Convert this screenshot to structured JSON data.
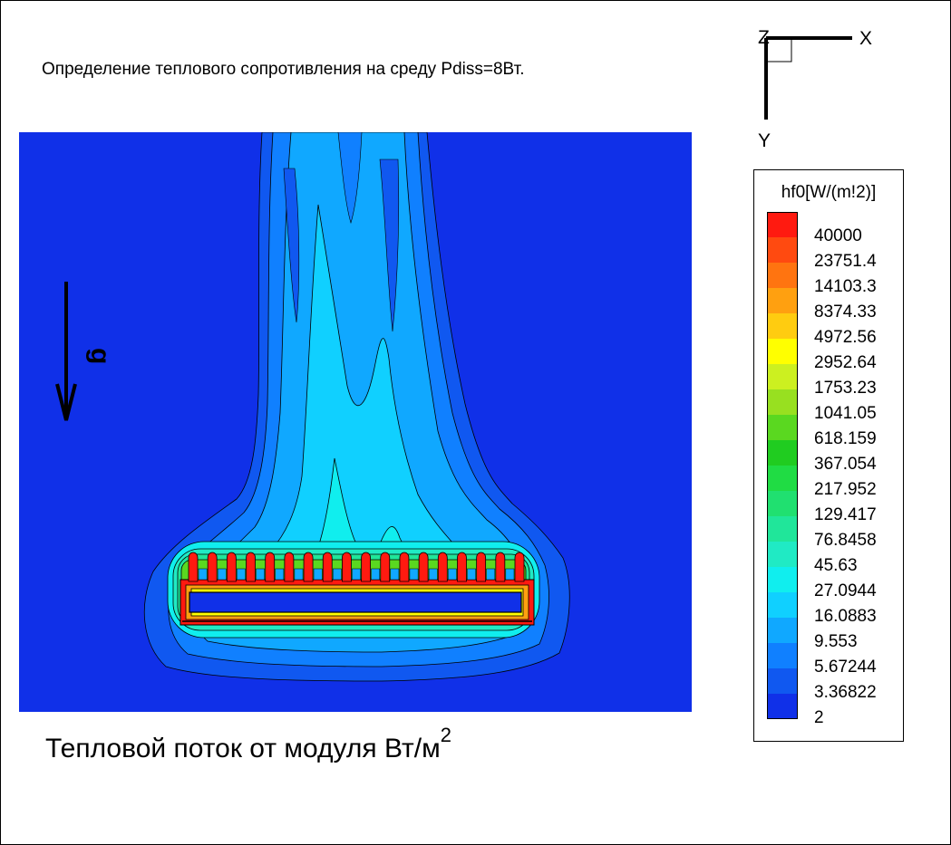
{
  "title": "Определение теплового сопротивления на среду Pdiss=8Вт.",
  "caption": {
    "text": "Тепловой поток от модуля Вт/м",
    "superscript": "2"
  },
  "axes_indicator": {
    "z": "Z",
    "x": "X",
    "y": "Y"
  },
  "gravity_label": "g",
  "legend": {
    "title": "hf0[W/(m!2)]",
    "levels": [
      {
        "value": "40000",
        "color": "#ff1a10"
      },
      {
        "value": "23751.4",
        "color": "#ff4a10"
      },
      {
        "value": "14103.3",
        "color": "#ff7410"
      },
      {
        "value": "8374.33",
        "color": "#ffa010"
      },
      {
        "value": "4972.56",
        "color": "#ffcc10"
      },
      {
        "value": "2952.64",
        "color": "#ffff00"
      },
      {
        "value": "1753.23",
        "color": "#ccf020"
      },
      {
        "value": "1041.05",
        "color": "#98e020"
      },
      {
        "value": "618.159",
        "color": "#5ad820"
      },
      {
        "value": "367.054",
        "color": "#20cc20"
      },
      {
        "value": "217.952",
        "color": "#20dc44"
      },
      {
        "value": "129.417",
        "color": "#20e070"
      },
      {
        "value": "76.8458",
        "color": "#20e69a"
      },
      {
        "value": "45.63",
        "color": "#20eac4"
      },
      {
        "value": "27.0944",
        "color": "#10eeee"
      },
      {
        "value": "16.0883",
        "color": "#10d0ff"
      },
      {
        "value": "9.553",
        "color": "#10a8ff"
      },
      {
        "value": "5.67244",
        "color": "#1080ff"
      },
      {
        "value": "3.36822",
        "color": "#1058f0"
      },
      {
        "value": "2",
        "color": "#1030e8"
      }
    ]
  },
  "colors": {
    "background_field": "#1030e8",
    "contour_line": "#000000"
  },
  "plot": {
    "fin_count": 18
  }
}
